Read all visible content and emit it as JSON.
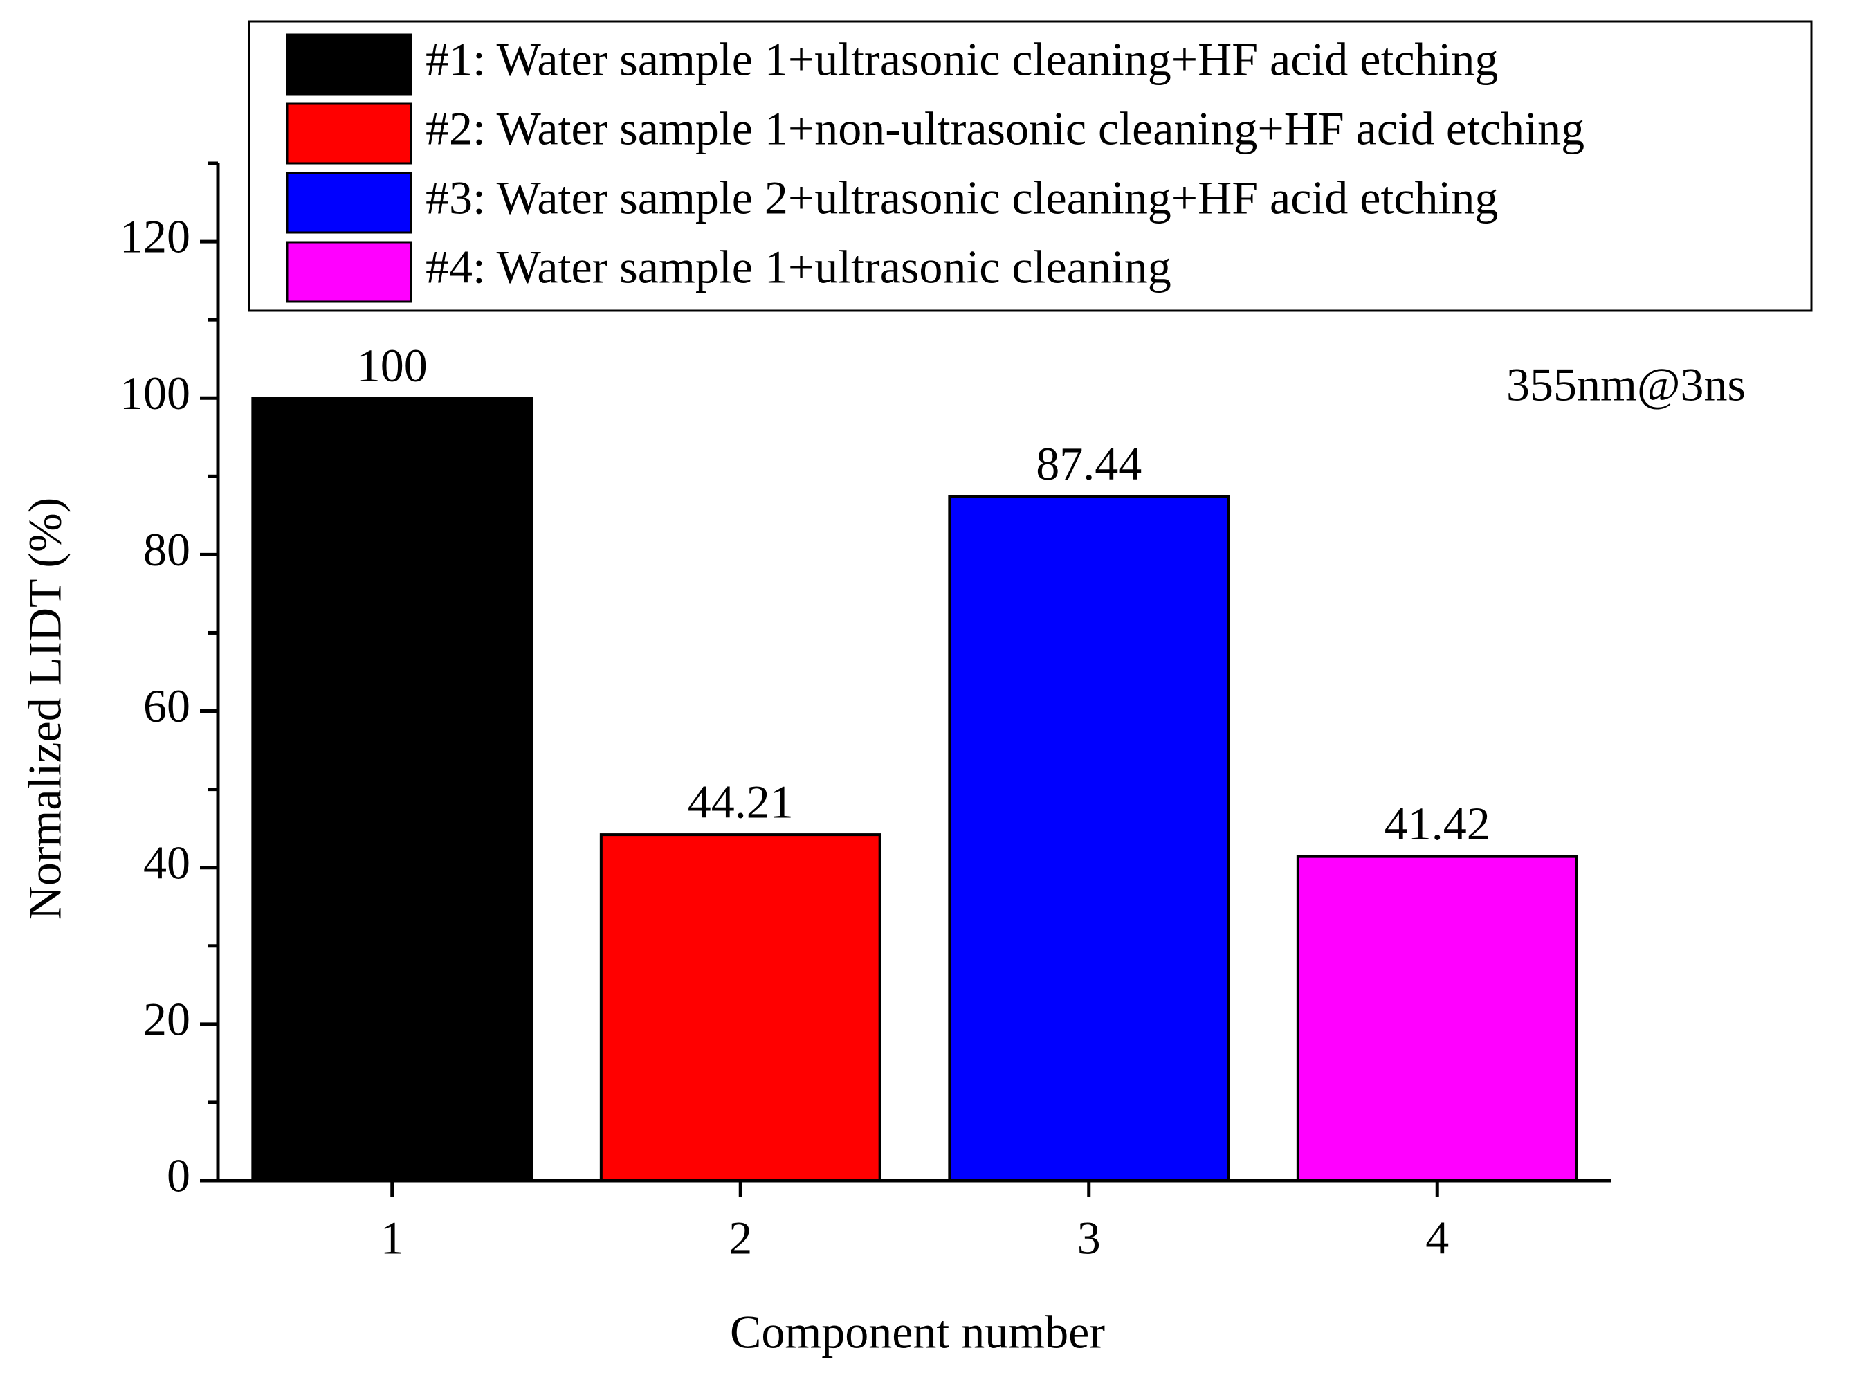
{
  "chart_data": {
    "type": "bar",
    "x_label": "Component number",
    "y_label": "Normalized LIDT (%)",
    "annotation": "355nm@3ns",
    "categories": [
      "1",
      "2",
      "3",
      "4"
    ],
    "values": [
      100,
      44.21,
      87.44,
      41.42
    ],
    "colors": [
      "#000000",
      "#ff0000",
      "#0000ff",
      "#ff00ff"
    ],
    "legend": [
      "#1: Water sample 1+ultrasonic cleaning+HF acid etching",
      "#2: Water sample 1+non-ultrasonic cleaning+HF acid etching",
      "#3: Water sample 2+ultrasonic cleaning+HF acid etching",
      "#4: Water sample 1+ultrasonic cleaning"
    ],
    "ylim": [
      0,
      130
    ],
    "yticks": [
      0,
      20,
      40,
      60,
      80,
      100,
      120
    ],
    "yminorticks": [
      10,
      30,
      50,
      70,
      90,
      110,
      130
    ]
  }
}
